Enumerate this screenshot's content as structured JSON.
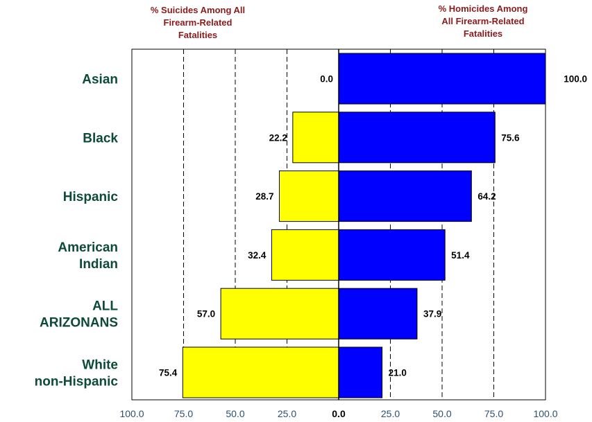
{
  "chart_data": {
    "type": "bar",
    "orientation": "horizontal-diverging",
    "left_title": [
      "% Suicides Among All",
      "Firearm-Related",
      "Fatalities"
    ],
    "right_title": [
      "% Homicides Among",
      "All Firearm-Related",
      "Fatalities"
    ],
    "categories": [
      [
        "Asian"
      ],
      [
        "Black"
      ],
      [
        "Hispanic"
      ],
      [
        "American",
        "Indian"
      ],
      [
        "ALL",
        "ARIZONANS"
      ],
      [
        "White",
        "non-Hispanic"
      ]
    ],
    "series": [
      {
        "side": "left",
        "color": "#ffff00",
        "values": [
          0.0,
          22.2,
          28.7,
          32.4,
          57.0,
          75.4
        ]
      },
      {
        "side": "right",
        "color": "#0000ff",
        "values": [
          100.0,
          75.6,
          64.2,
          51.4,
          37.9,
          21.0
        ]
      }
    ],
    "value_labels": {
      "left": [
        "0.0",
        "22.2",
        "28.7",
        "32.4",
        "57.0",
        "75.4"
      ],
      "right": [
        "100.0",
        "75.6",
        "64.2",
        "51.4",
        "37.9",
        "21.0"
      ]
    },
    "left_ticks": [
      "100.0",
      "75.0",
      "50.0",
      "25.0"
    ],
    "center_tick": "0.0",
    "right_ticks": [
      "25.0",
      "50.0",
      "75.0",
      "100.0"
    ],
    "xlim_left": [
      100,
      0
    ],
    "xlim_right": [
      0,
      100
    ],
    "grid": "dashed-vertical",
    "colors": {
      "frame": "#000000",
      "header": "#8b1a1a",
      "category": "#0d4a3a",
      "tick": "#2f4f6f"
    }
  }
}
